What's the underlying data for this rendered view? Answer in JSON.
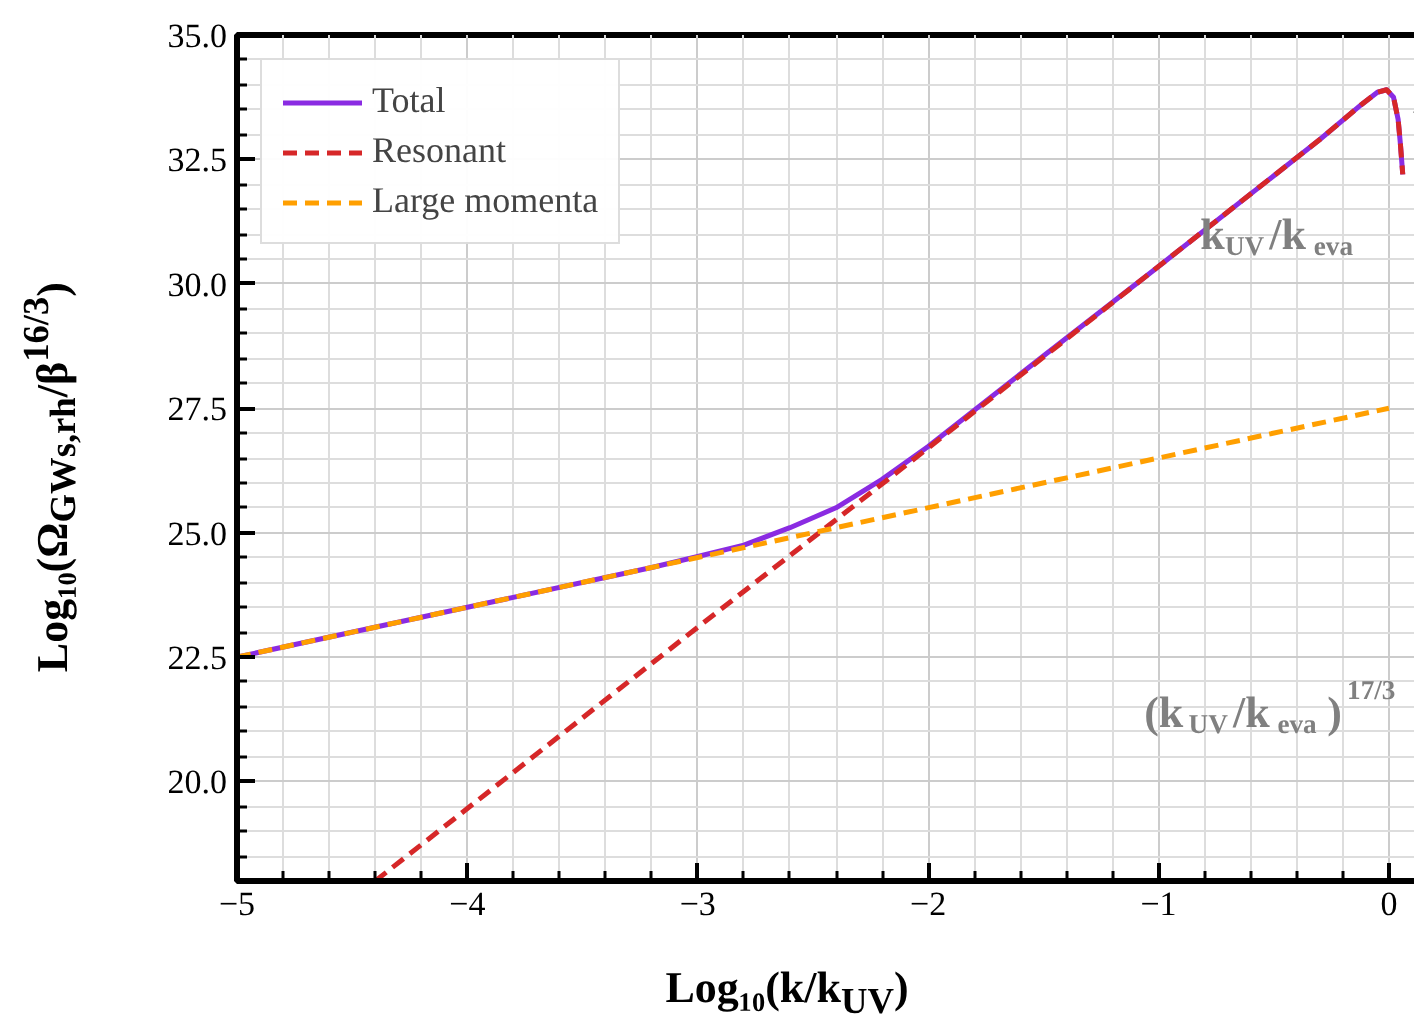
{
  "chart_data": {
    "type": "line",
    "xlabel": "Log₁₀(k/k$_{UV}$)",
    "ylabel": "Log₁₀(Ω$_{GWs,rh}$/β$^{16/3}$)",
    "xlim": [
      -5,
      0.2
    ],
    "ylim": [
      18,
      35
    ],
    "xticks": [
      {
        "value": -5,
        "label": "−5"
      },
      {
        "value": -4,
        "label": "−4"
      },
      {
        "value": -3,
        "label": "−3"
      },
      {
        "value": -2,
        "label": "−2"
      },
      {
        "value": -1,
        "label": "−1"
      },
      0
    ],
    "yticks": [
      {
        "value": 20,
        "label": "20.0"
      },
      22.5,
      {
        "value": 25,
        "label": "25.0"
      },
      27.5,
      {
        "value": 30,
        "label": "30.0"
      },
      32.5,
      {
        "value": 35,
        "label": "35.0"
      }
    ],
    "grid": true,
    "legend": "top left",
    "series": [
      {
        "name": "Total",
        "color": "#8a2be2",
        "line_style": "solid",
        "x": [
          -5,
          -4,
          -3.2,
          -3,
          -2.8,
          -2.6,
          -2.5,
          -2.4,
          -2.2,
          -2,
          -1.5,
          -1,
          -0.3,
          -0.12,
          -0.05,
          -0.01,
          0.02,
          0.04,
          0.05,
          0.06
        ],
        "values": [
          22.5,
          23.5,
          24.3,
          24.52,
          24.75,
          25.1,
          25.3,
          25.5,
          26.07,
          26.73,
          28.55,
          30.35,
          32.9,
          33.6,
          33.85,
          33.9,
          33.75,
          33.3,
          32.8,
          32.2
        ]
      },
      {
        "name": "Resonant",
        "color": "#d62728",
        "line_style": "dashed",
        "x": [
          -4.4,
          -3,
          -2,
          -1,
          -0.3,
          -0.12,
          -0.05,
          -0.01,
          0.02,
          0.04,
          0.05,
          0.06
        ],
        "values": [
          18,
          23.1,
          26.7,
          30.35,
          32.9,
          33.6,
          33.85,
          33.9,
          33.75,
          33.3,
          32.8,
          32.2
        ]
      },
      {
        "name": "Large momenta",
        "color": "#ff9f00",
        "line_style": "dashed",
        "x": [
          -5,
          -2.5,
          0
        ],
        "values": [
          22.5,
          25,
          27.5
        ]
      }
    ],
    "annotations": [
      "k$_{UV}$/k$_{eva}$",
      "(k$_{UV}$/k$_{eva}$)$^{17/3}$"
    ]
  }
}
